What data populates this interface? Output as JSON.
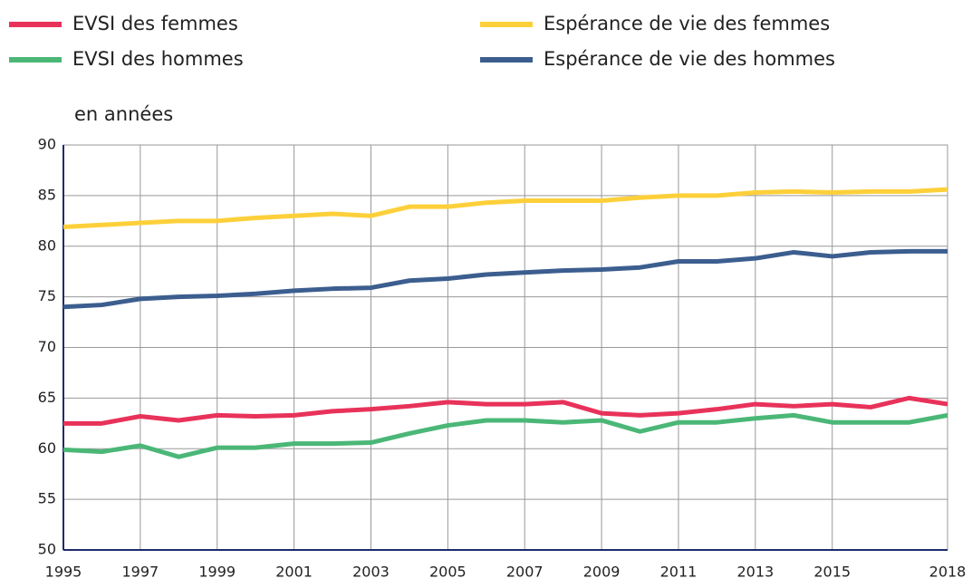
{
  "chart_data": {
    "type": "line",
    "y_label": "en années",
    "x": [
      1995,
      1996,
      1997,
      1998,
      1999,
      2000,
      2001,
      2002,
      2003,
      2004,
      2005,
      2006,
      2007,
      2008,
      2009,
      2010,
      2011,
      2012,
      2013,
      2014,
      2015,
      2016,
      2017,
      2018
    ],
    "series": [
      {
        "name": "EVSI des femmes",
        "color": "#e8325a",
        "values": [
          62.5,
          62.5,
          63.2,
          62.8,
          63.3,
          63.2,
          63.3,
          63.7,
          63.9,
          64.2,
          64.6,
          64.4,
          64.4,
          64.6,
          63.5,
          63.3,
          63.5,
          63.9,
          64.4,
          64.2,
          64.4,
          64.1,
          65.0,
          64.4
        ]
      },
      {
        "name": "EVSI des hommes",
        "color": "#4bb777",
        "values": [
          59.9,
          59.7,
          60.3,
          59.2,
          60.1,
          60.1,
          60.5,
          60.5,
          60.6,
          61.5,
          62.3,
          62.8,
          62.8,
          62.6,
          62.8,
          61.7,
          62.6,
          62.6,
          63.0,
          63.3,
          62.6,
          62.6,
          62.6,
          63.3
        ]
      },
      {
        "name": "Espérance de vie des femmes",
        "color": "#fdd03a",
        "values": [
          81.9,
          82.1,
          82.3,
          82.5,
          82.5,
          82.8,
          83.0,
          83.2,
          83.0,
          83.9,
          83.9,
          84.3,
          84.5,
          84.5,
          84.5,
          84.8,
          85.0,
          85.0,
          85.3,
          85.4,
          85.3,
          85.4,
          85.4,
          85.6
        ]
      },
      {
        "name": "Espérance de vie des hommes",
        "color": "#3c5e8f",
        "values": [
          74.0,
          74.2,
          74.8,
          75.0,
          75.1,
          75.3,
          75.6,
          75.8,
          75.9,
          76.6,
          76.8,
          77.2,
          77.4,
          77.6,
          77.7,
          77.9,
          78.5,
          78.5,
          78.8,
          79.4,
          79.0,
          79.4,
          79.5,
          79.5
        ]
      }
    ],
    "xlim": [
      1995,
      2018
    ],
    "xticks": [
      1995,
      1997,
      1999,
      2001,
      2003,
      2005,
      2007,
      2009,
      2011,
      2013,
      2015,
      2018
    ],
    "ylim": [
      50,
      90
    ],
    "yticks": [
      50,
      55,
      60,
      65,
      70,
      75,
      80,
      85,
      90
    ],
    "grid": true
  }
}
